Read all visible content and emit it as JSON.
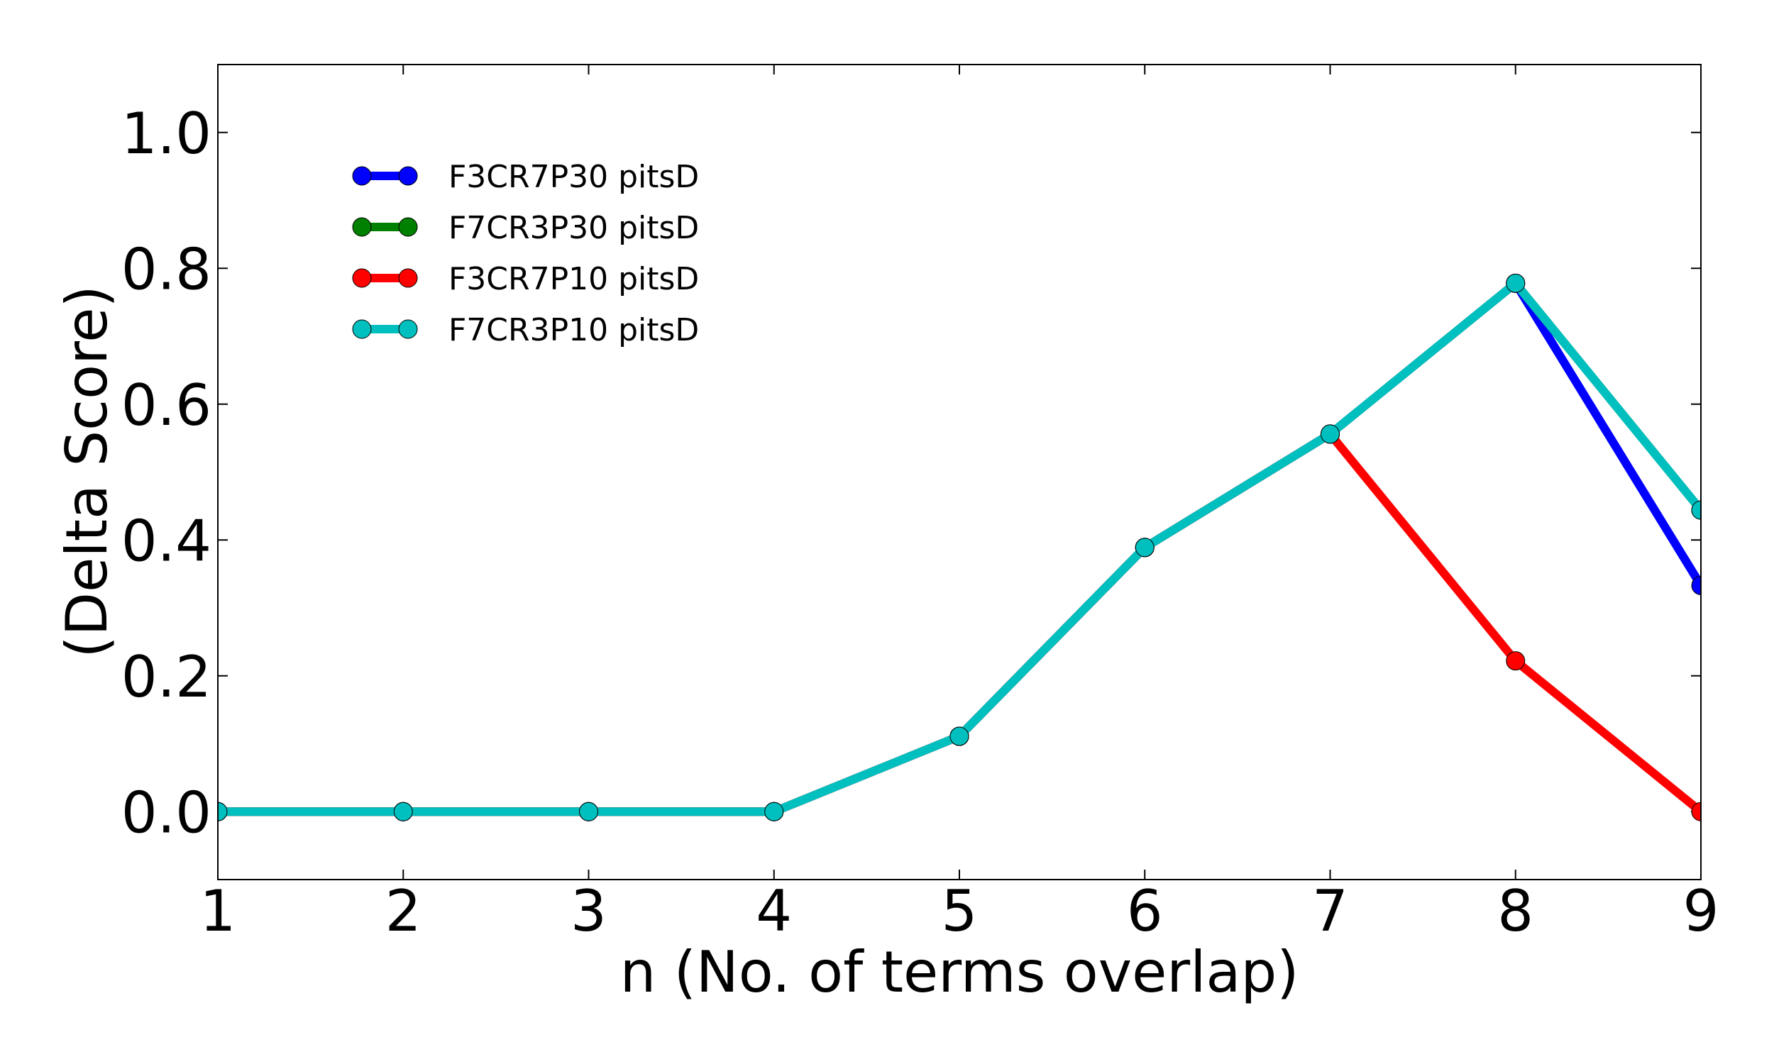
{
  "chart_data": {
    "type": "line",
    "title": "",
    "xlabel": "n (No. of terms overlap)",
    "ylabel": "(Delta Score)",
    "x": [
      1,
      2,
      3,
      4,
      5,
      6,
      7,
      8,
      9
    ],
    "xlim": [
      1,
      9
    ],
    "ylim": [
      -0.1,
      1.1
    ],
    "xticks": [
      "1",
      "2",
      "3",
      "4",
      "5",
      "6",
      "7",
      "8",
      "9"
    ],
    "yticks": [
      {
        "value": 0.0,
        "label": "0.0"
      },
      {
        "value": 0.2,
        "label": "0.2"
      },
      {
        "value": 0.4,
        "label": "0.4"
      },
      {
        "value": 0.6,
        "label": "0.6"
      },
      {
        "value": 0.8,
        "label": "0.8"
      },
      {
        "value": 1.0,
        "label": "1.0"
      }
    ],
    "grid": false,
    "legend_position": "top-left",
    "series": [
      {
        "name": "F3CR7P30 pitsD",
        "color": "#0000ff",
        "values": [
          0,
          0,
          0,
          0,
          0.111,
          0.389,
          0.556,
          0.778,
          0.333
        ]
      },
      {
        "name": "F7CR3P30 pitsD",
        "color": "#008000",
        "values": [
          0,
          0,
          0,
          0,
          0.111,
          0.389,
          0.556,
          0.778,
          0.444
        ]
      },
      {
        "name": "F3CR7P10 pitsD",
        "color": "#ff0000",
        "values": [
          0,
          0,
          0,
          0,
          0.111,
          0.389,
          0.556,
          0.222,
          0.0
        ]
      },
      {
        "name": "F7CR3P10 pitsD",
        "color": "#00bfbf",
        "values": [
          0,
          0,
          0,
          0,
          0.111,
          0.389,
          0.556,
          0.778,
          0.444
        ]
      }
    ]
  }
}
